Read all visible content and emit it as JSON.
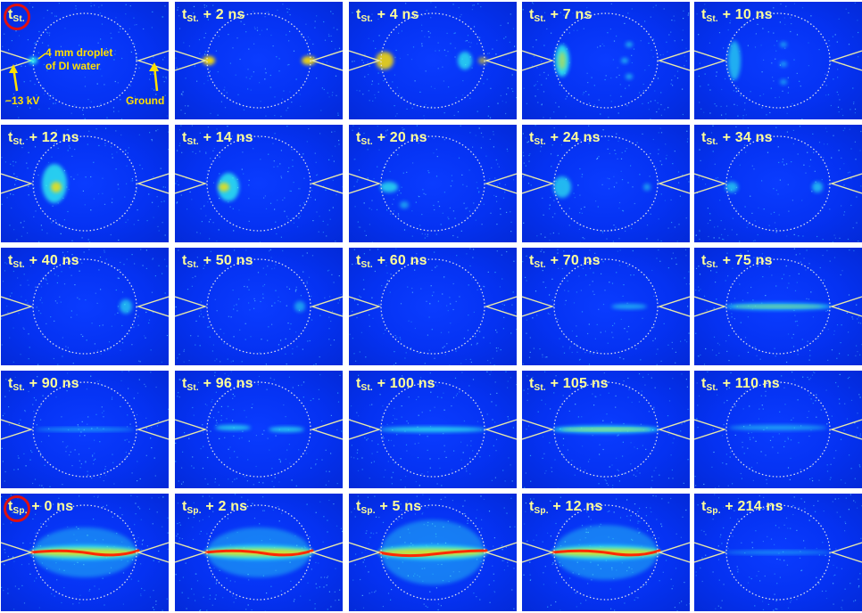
{
  "colors": {
    "background": "#0532f2",
    "label": "#ffff99",
    "electrode": "#e8e8a8",
    "droplet_outline": "#e8e8e8",
    "marker_circle": "#e01010",
    "annotation": "#ffe000",
    "plasma_hot": "#ff2a00",
    "plasma_warm": "#ffe000",
    "plasma_cool": "#33ffee"
  },
  "annotations": {
    "droplet": "4 mm droplet",
    "droplet_line2": "of DI water",
    "voltage": "−13 kV",
    "ground": "Ground"
  },
  "panels": [
    {
      "base": "t",
      "sub": "St.",
      "delay": "",
      "circled": true
    },
    {
      "base": "t",
      "sub": "St.",
      "delay": " + 2 ns"
    },
    {
      "base": "t",
      "sub": "St.",
      "delay": " + 4 ns"
    },
    {
      "base": "t",
      "sub": "St.",
      "delay": " + 7 ns"
    },
    {
      "base": "t",
      "sub": "St.",
      "delay": " + 10 ns"
    },
    {
      "base": "t",
      "sub": "St.",
      "delay": " + 12 ns"
    },
    {
      "base": "t",
      "sub": "St.",
      "delay": " + 14 ns"
    },
    {
      "base": "t",
      "sub": "St.",
      "delay": " + 20 ns"
    },
    {
      "base": "t",
      "sub": "St.",
      "delay": " + 24 ns"
    },
    {
      "base": "t",
      "sub": "St.",
      "delay": " + 34 ns"
    },
    {
      "base": "t",
      "sub": "St.",
      "delay": " + 40 ns"
    },
    {
      "base": "t",
      "sub": "St.",
      "delay": " + 50 ns"
    },
    {
      "base": "t",
      "sub": "St.",
      "delay": " + 60 ns"
    },
    {
      "base": "t",
      "sub": "St.",
      "delay": " + 70 ns"
    },
    {
      "base": "t",
      "sub": "St.",
      "delay": " + 75 ns"
    },
    {
      "base": "t",
      "sub": "St.",
      "delay": " + 90 ns"
    },
    {
      "base": "t",
      "sub": "St.",
      "delay": " + 96 ns"
    },
    {
      "base": "t",
      "sub": "St.",
      "delay": " + 100 ns"
    },
    {
      "base": "t",
      "sub": "St.",
      "delay": " + 105 ns"
    },
    {
      "base": "t",
      "sub": "St.",
      "delay": " + 110 ns"
    },
    {
      "base": "t",
      "sub": "Sp.",
      "delay": " + 0 ns",
      "circled": true
    },
    {
      "base": "t",
      "sub": "Sp.",
      "delay": " + 2 ns"
    },
    {
      "base": "t",
      "sub": "Sp.",
      "delay": " + 5 ns"
    },
    {
      "base": "t",
      "sub": "Sp.",
      "delay": " + 12 ns"
    },
    {
      "base": "t",
      "sub": "Sp.",
      "delay": " + 214 ns"
    }
  ]
}
